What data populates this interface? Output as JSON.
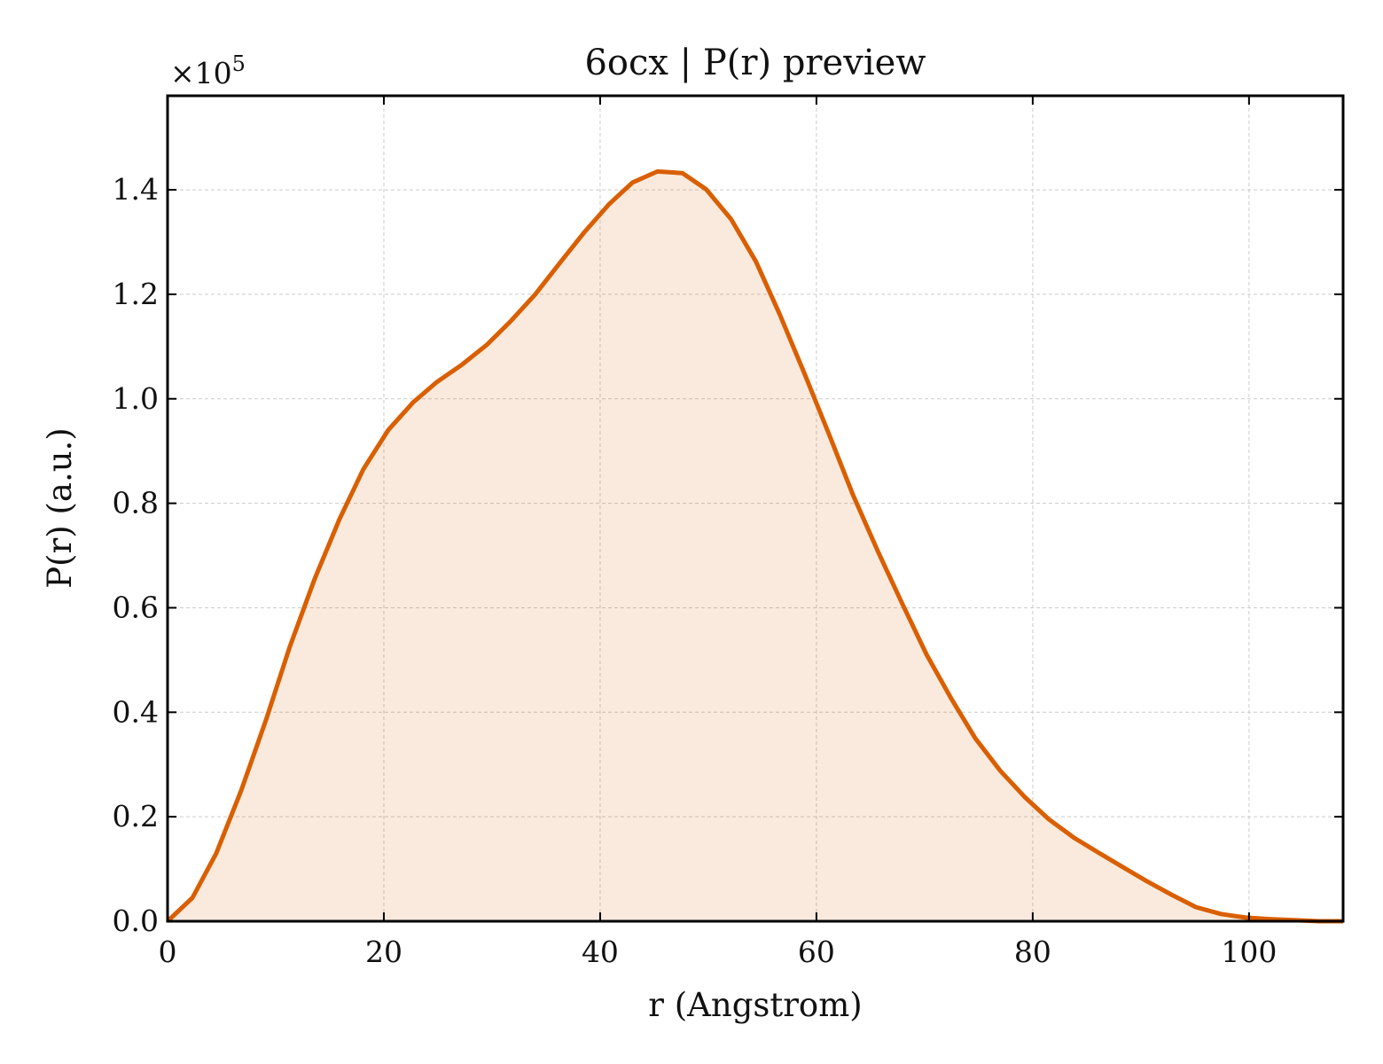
{
  "chart_data": {
    "type": "area",
    "title": "6ocx | P(r) preview",
    "xlabel": "r (Angstrom)",
    "ylabel": "P(r) (a.u.)",
    "y_scale_label": "×10",
    "y_scale_exponent": "5",
    "xlim": [
      0,
      108.7
    ],
    "ylim": [
      0,
      1.58
    ],
    "x_ticks": [
      0,
      20,
      40,
      60,
      80,
      100
    ],
    "x_tick_labels": [
      "0",
      "20",
      "40",
      "60",
      "80",
      "100"
    ],
    "y_ticks": [
      0.0,
      0.2,
      0.4,
      0.6,
      0.8,
      1.0,
      1.2,
      1.4
    ],
    "y_tick_labels": [
      "0.0",
      "0.2",
      "0.4",
      "0.6",
      "0.8",
      "1.0",
      "1.2",
      "1.4"
    ],
    "grid": true,
    "line_color": "#d95f02",
    "fill_color": "#d95f02",
    "fill_opacity": 0.13,
    "series": [
      {
        "x": [
          0,
          2.3,
          4.5,
          6.8,
          9.1,
          11.3,
          13.6,
          15.9,
          18.1,
          20.4,
          22.7,
          24.9,
          27.2,
          29.5,
          31.7,
          34.0,
          36.2,
          38.5,
          40.8,
          43.0,
          45.3,
          47.6,
          49.8,
          52.1,
          54.4,
          56.6,
          58.9,
          61.2,
          63.4,
          65.7,
          68.0,
          70.2,
          72.5,
          74.7,
          77.0,
          79.3,
          81.5,
          83.8,
          86.1,
          88.3,
          90.6,
          92.9,
          95.1,
          97.4,
          99.7,
          101.9,
          104.2,
          106.5,
          108.7
        ],
        "y": [
          0.0,
          0.045,
          0.13,
          0.25,
          0.385,
          0.525,
          0.655,
          0.77,
          0.865,
          0.94,
          0.993,
          1.032,
          1.065,
          1.103,
          1.148,
          1.2,
          1.258,
          1.318,
          1.372,
          1.414,
          1.435,
          1.432,
          1.401,
          1.344,
          1.263,
          1.162,
          1.048,
          0.93,
          0.815,
          0.707,
          0.605,
          0.51,
          0.425,
          0.35,
          0.288,
          0.237,
          0.195,
          0.16,
          0.131,
          0.104,
          0.076,
          0.05,
          0.027,
          0.014,
          0.007,
          0.004,
          0.002,
          0.0,
          0.0
        ]
      }
    ]
  }
}
